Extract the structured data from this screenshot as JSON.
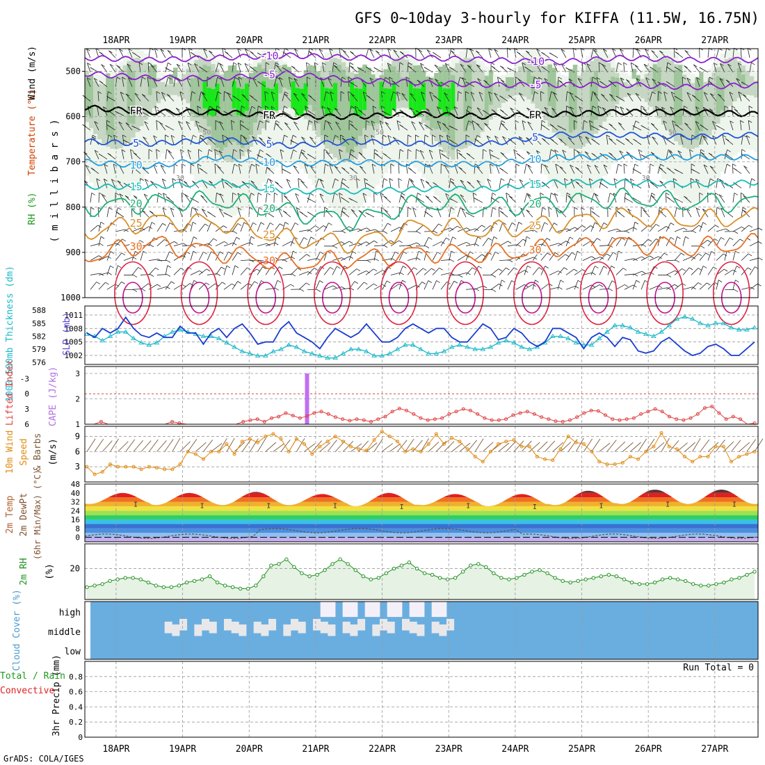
{
  "header": {
    "title": "GFS 0~10day 3-hourly for KIFFA (11.5W, 16.75N)",
    "footer": "GrADS: COLA/IGES"
  },
  "x_axis": {
    "dates": [
      "18APR",
      "19APR",
      "20APR",
      "21APR",
      "22APR",
      "23APR",
      "24APR",
      "25APR",
      "26APR",
      "27APR"
    ],
    "start_day_offset": -0.47,
    "end_day_offset": 9.65
  },
  "chart_data": [
    {
      "id": "upper-air",
      "type": "contour",
      "ylabel_parts": [
        {
          "text": "RH (%)",
          "color": "#1a9a1a"
        },
        {
          "text": "Temperature (°C)",
          "color": "#d04000"
        },
        {
          "text": "Wind (m/s)",
          "color": "#000000"
        }
      ],
      "ylabel2": "( m i l l i b a r s )",
      "yticks": [
        500,
        600,
        700,
        800,
        900,
        1000
      ],
      "ylim": [
        450,
        1000
      ],
      "temperature_labels": [
        "-10",
        "-5",
        "FR",
        "5",
        "10",
        "15",
        "20",
        "25",
        "30"
      ],
      "rh_labels": [
        "30",
        "50"
      ],
      "isotherms": [
        {
          "label": "-10",
          "color": "#8a1fd0",
          "p": [
            470,
            475,
            470,
            465,
            470,
            470,
            475,
            480,
            470,
            475,
            475
          ]
        },
        {
          "label": "-5",
          "color": "#8a1fd0",
          "p": [
            505,
            515,
            515,
            505,
            520,
            525,
            530,
            530,
            530,
            535,
            530
          ]
        },
        {
          "label": "FR",
          "color": "#000000",
          "p": [
            580,
            590,
            590,
            600,
            600,
            595,
            600,
            595,
            590,
            590,
            595
          ]
        },
        {
          "label": "5",
          "color": "#1e54d8",
          "p": [
            655,
            660,
            650,
            665,
            655,
            660,
            660,
            640,
            640,
            645,
            640
          ]
        },
        {
          "label": "10",
          "color": "#1d9ee0",
          "p": [
            700,
            710,
            690,
            705,
            700,
            705,
            705,
            690,
            690,
            690,
            690
          ]
        },
        {
          "label": "15",
          "color": "#18bcb8",
          "p": [
            755,
            755,
            745,
            765,
            765,
            760,
            760,
            745,
            745,
            750,
            745
          ]
        },
        {
          "label": "20",
          "color": "#1bb078",
          "p": [
            800,
            790,
            785,
            810,
            830,
            790,
            800,
            790,
            780,
            790,
            790
          ]
        },
        {
          "label": "25",
          "color": "#d89028",
          "p": [
            855,
            830,
            835,
            870,
            880,
            840,
            855,
            835,
            820,
            830,
            820
          ]
        },
        {
          "label": "30",
          "color": "#e87020",
          "p": [
            910,
            880,
            900,
            925,
            915,
            900,
            905,
            890,
            880,
            890,
            880
          ]
        }
      ]
    },
    {
      "id": "thickness-slp",
      "type": "line",
      "ylabel": "1000-500mb Thickness (dm)",
      "ylabel2": "SLP (mb)",
      "yticks_left": [
        "576",
        "579",
        "582",
        "585",
        "588"
      ],
      "yticks_right": [
        "1002",
        "1005",
        "1008",
        "1011"
      ],
      "series": [
        {
          "name": "SLP (mb)",
          "color": "#1a3dd0",
          "ylim": [
            1000,
            1013
          ],
          "values": [
            1007,
            1006,
            1008,
            1007,
            1008,
            1010.5,
            1008,
            1006.5,
            1006,
            1007,
            1006,
            1006,
            1008.5,
            1007,
            1007,
            1004.5,
            1007,
            1008,
            1006,
            1008,
            1009,
            1007,
            1004.5,
            1005,
            1005,
            1008,
            1009.5,
            1007,
            1006,
            1005,
            1003.5,
            1006,
            1008,
            1007,
            1006,
            1007,
            1009,
            1007,
            1005,
            1005,
            1006,
            1008,
            1009,
            1008,
            1007,
            1008,
            1008,
            1006,
            1005,
            1005,
            1007,
            1009,
            1008,
            1005.5,
            1006,
            1008,
            1007,
            1005,
            1004,
            1005,
            1008,
            1008,
            1007,
            1006,
            1003.5,
            1006,
            1007,
            1006,
            1004,
            1006,
            1005.5,
            1003,
            1002.5,
            1003,
            1005,
            1006,
            1004.5,
            1003,
            1002,
            1002.5,
            1004,
            1004.5,
            1003.5,
            1002,
            1002,
            1003.5,
            1005
          ]
        },
        {
          "name": "Thickness (dm)",
          "color": "#1ab8c8",
          "ylim": [
            575.5,
            589
          ],
          "values": [
            582.5,
            582,
            581,
            582,
            583,
            583,
            581.5,
            580.5,
            580,
            580.5,
            582,
            583,
            583.5,
            583,
            582.5,
            582,
            582,
            581.5,
            580.5,
            579.5,
            578.5,
            578,
            577.5,
            577.5,
            578.5,
            579,
            580,
            579.5,
            578.5,
            578,
            577.5,
            577,
            577,
            578,
            579,
            579,
            578.5,
            577.5,
            577.5,
            578,
            579,
            580,
            580,
            579,
            578,
            578,
            578.5,
            579.5,
            580,
            579.5,
            579,
            579,
            579.5,
            580.5,
            581,
            580.5,
            579.5,
            579,
            579.5,
            580.5,
            582,
            582,
            581.5,
            580.5,
            580,
            580,
            581.5,
            583,
            584.5,
            584.5,
            584,
            583,
            582.5,
            582,
            583,
            584.5,
            586,
            586.5,
            586,
            585,
            584.5,
            585,
            585,
            584,
            583.5,
            583.5,
            584
          ]
        }
      ]
    },
    {
      "id": "cape-li",
      "type": "bar+line",
      "ylabel": "Lifted Index",
      "ylabel2": "CAPE (J/kg)",
      "yticks_left": [
        "-3",
        "0",
        "3",
        "6"
      ],
      "yticks_right": [
        "1",
        "2",
        "3"
      ],
      "bars": {
        "name": "CAPE",
        "color": "#c070f0",
        "points": [
          {
            "day": 2.87,
            "value": 3.0
          }
        ]
      },
      "series": [
        {
          "name": "Lifted Index",
          "color": "#e04040",
          "values": [
            6,
            6,
            5.5,
            6,
            6,
            6,
            6,
            6,
            6,
            6,
            6,
            6,
            5.5,
            5.8,
            6,
            6,
            6,
            6,
            6,
            6,
            6,
            6,
            5.5,
            5.2,
            5,
            5.5,
            4.8,
            4.5,
            3.8,
            4.3,
            4.8,
            4.4,
            3.8,
            3.5,
            4.0,
            4.6,
            5.0,
            5.3,
            5.0,
            5.2,
            5.5,
            5.0,
            4.5,
            3.5,
            2.9,
            3.3,
            4.0,
            4.8,
            5.2,
            5.0,
            4.8,
            4.0,
            3.5,
            3.0,
            3.3,
            4.0,
            4.8,
            5.2,
            5.2,
            5.0,
            4.2,
            3.8,
            3.5,
            4.0,
            4.6,
            5.0,
            5.4,
            5.5,
            5.2,
            4.6,
            3.8,
            3.3,
            3.4,
            4.2,
            5.0,
            5.2,
            5.0,
            4.8,
            4.0,
            3.5,
            3.0,
            3.5,
            4.5,
            5.0,
            5.2,
            4.8,
            4.0,
            2.8,
            2.5,
            3.8,
            5.0,
            4.5,
            5.0,
            6,
            5.8
          ]
        }
      ],
      "reference_line": 0
    },
    {
      "id": "wind10m",
      "type": "line",
      "ylabel": "10m Wind Speed & Barbs (m/s)",
      "yticks": [
        "3",
        "6",
        "9"
      ],
      "ylim": [
        0,
        11
      ],
      "series": [
        {
          "name": "10m Wind Speed",
          "color": "#e08a10",
          "values": [
            3,
            1.5,
            2,
            3.5,
            3,
            3,
            3,
            2.5,
            3,
            2.8,
            2.5,
            2.5,
            3.5,
            6,
            5.5,
            4.5,
            6,
            6,
            7.5,
            5.5,
            8,
            8.5,
            7.8,
            9,
            9.5,
            8.5,
            6,
            8.5,
            7.5,
            5.5,
            7,
            8,
            9,
            8,
            7,
            6.5,
            6.2,
            8.3,
            10,
            9,
            8,
            6,
            6.5,
            6,
            7.5,
            9.5,
            7.5,
            8.7,
            8,
            6.5,
            5,
            4,
            6,
            7.5,
            8,
            8.3,
            7,
            7,
            5,
            4.5,
            4.3,
            6.5,
            9,
            7.8,
            7.5,
            6,
            4,
            3.5,
            3.5,
            3.8,
            5,
            4.5,
            6,
            7,
            9.7,
            7,
            6.5,
            5,
            4,
            5,
            5,
            7,
            7,
            4,
            5,
            5.5,
            6
          ]
        }
      ]
    },
    {
      "id": "temp2m",
      "type": "area",
      "ylabel": "2m Temp",
      "ylabel2": "2m DewPt",
      "ylabel3": "(6hr Min/Max) (°C)",
      "yticks": [
        "0",
        "8",
        "16",
        "24",
        "32",
        "40",
        "48"
      ],
      "ylim": [
        -4,
        48
      ],
      "temp_max_days": [
        40,
        40,
        41,
        39,
        40,
        39,
        39,
        42,
        43,
        43
      ],
      "temp_min_days": [
        30,
        29,
        29,
        29,
        28,
        29,
        28,
        29,
        30,
        30
      ]
    },
    {
      "id": "rh2m",
      "type": "area",
      "ylabel": "2m RH",
      "ylabel2": "(%)",
      "yticks": [
        "20"
      ],
      "ylim": [
        0,
        36
      ],
      "series": [
        {
          "name": "2m RH",
          "color": "#209020",
          "values": [
            8,
            9,
            10,
            12,
            13,
            14,
            14,
            13,
            11,
            9,
            8,
            8,
            9,
            11,
            12,
            13,
            15,
            11,
            9,
            8,
            7,
            7,
            9,
            15,
            22,
            23,
            26,
            21,
            17,
            15,
            16,
            19,
            23,
            26,
            23,
            19,
            15,
            13,
            14,
            17,
            20,
            22,
            24,
            20,
            17,
            16,
            14,
            13,
            14,
            18,
            22,
            23,
            21,
            17,
            14,
            13,
            14,
            16,
            18,
            19,
            17,
            14,
            12,
            11,
            12,
            13,
            14,
            15,
            16,
            15,
            13,
            11,
            10,
            10,
            11,
            13,
            14,
            13,
            12,
            10,
            9,
            9,
            10,
            11,
            13,
            14,
            16,
            18
          ]
        }
      ]
    },
    {
      "id": "cloud",
      "type": "heatmap",
      "ylabel": "Cloud Cover (%)",
      "levels": [
        "high",
        "middle",
        "low"
      ]
    },
    {
      "id": "precip",
      "type": "bar",
      "ylabel_parts": [
        {
          "text": "Total / Rain",
          "color": "#1a9a1a"
        },
        {
          "text": "Convective",
          "color": "#e02020"
        }
      ],
      "ylabel2": "3hr Precip (mm)",
      "yticks": [
        "0",
        "0.2",
        "0.4",
        "0.6",
        "0.8"
      ],
      "ylim": [
        0,
        1
      ],
      "run_total": "Run Total = 0",
      "values": []
    }
  ]
}
